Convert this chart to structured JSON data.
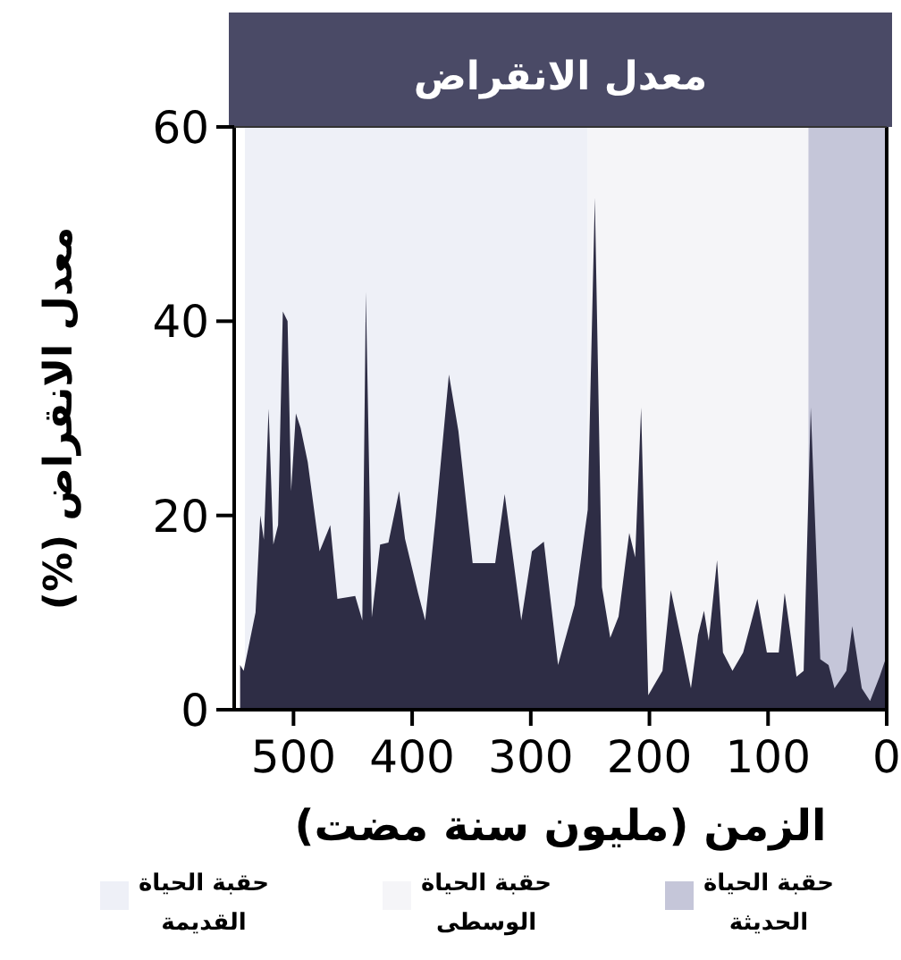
{
  "chart_data": {
    "type": "area",
    "title": "معدل الانقراض",
    "xlabel": "الزمن (مليون سنة مضت)",
    "ylabel": "معدل الانقراض (%)",
    "x": [
      545,
      542,
      532,
      528,
      525,
      521,
      517,
      513,
      509,
      505,
      502,
      498,
      494,
      488,
      478,
      469,
      463,
      448,
      442,
      439,
      434,
      427,
      420,
      411,
      406,
      395,
      389,
      380,
      369,
      361,
      349,
      330,
      322,
      308,
      299,
      289,
      277,
      263,
      252,
      246,
      240,
      233,
      226,
      217,
      212,
      207,
      201,
      189,
      182,
      172,
      165,
      159,
      154,
      150,
      143,
      138,
      130,
      121,
      109,
      101,
      91,
      86,
      76,
      70,
      64,
      56,
      49,
      44,
      34,
      29,
      21,
      14,
      6,
      1,
      0
    ],
    "values": [
      4.6,
      4,
      10,
      20,
      17.5,
      31,
      17,
      19,
      41,
      40,
      22.5,
      30.5,
      29,
      25.5,
      16.3,
      19,
      11.4,
      11.7,
      9.2,
      43,
      9.5,
      17,
      17.2,
      22.5,
      17.6,
      12,
      9.2,
      20,
      34.5,
      28.7,
      15.1,
      15.1,
      22.2,
      9.2,
      16.3,
      17.3,
      4.6,
      10.8,
      20.6,
      52.7,
      12.6,
      7.4,
      9.6,
      18.2,
      15.7,
      31.1,
      1.5,
      4,
      12.3,
      6.5,
      2.2,
      7.7,
      10.2,
      7.1,
      15.4,
      5.9,
      4,
      5.9,
      11.4,
      5.9,
      5.9,
      12,
      3.4,
      4,
      31.1,
      5.2,
      4.6,
      2.2,
      4,
      8.6,
      2.2,
      0.9,
      3.4,
      5.2,
      4
    ],
    "color": "#2e2d45",
    "xlim": [
      550,
      0
    ],
    "xticks": [
      500,
      400,
      300,
      200,
      100,
      0
    ],
    "ylim": [
      0,
      60
    ],
    "yticks": [
      0,
      20,
      40,
      60
    ],
    "bands": [
      {
        "axis": "x",
        "from": 541,
        "to": 252,
        "label": "حقبة الحياة القديمة",
        "color": "#eef0f7"
      },
      {
        "axis": "x",
        "from": 252,
        "to": 66,
        "label": "حقبة الحياة الوسطى",
        "color": "#f5f5f8"
      },
      {
        "axis": "x",
        "from": 66,
        "to": 0,
        "label": "حقبة الحياة الحديثة",
        "color": "#c5c6d9"
      }
    ],
    "legend": "bottom",
    "grid": false
  }
}
